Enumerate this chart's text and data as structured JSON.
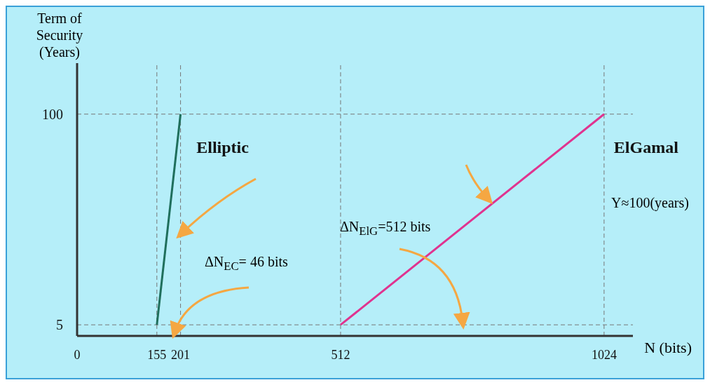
{
  "chart_data": {
    "type": "line",
    "xlabel": "N (bits)",
    "ylabel": "Term of Security (Years)",
    "xlim": [
      0,
      1080
    ],
    "xticks": [
      0,
      155,
      201,
      512,
      1024
    ],
    "ylim": [
      0,
      123
    ],
    "yticks": [
      5,
      100
    ],
    "series": [
      {
        "name": "Elliptic",
        "color": "#1f6f5c",
        "x": [
          155,
          201
        ],
        "values": [
          5,
          100
        ]
      },
      {
        "name": "ElGamal",
        "color": "#e0338f",
        "x": [
          512,
          1024
        ],
        "values": [
          5,
          100
        ]
      }
    ],
    "ref_lines": [
      {
        "axis": "x",
        "value": 155,
        "line_style": "dashed",
        "color": "#777777"
      },
      {
        "axis": "x",
        "value": 201,
        "line_style": "dashed",
        "color": "#777777"
      },
      {
        "axis": "x",
        "value": 512,
        "line_style": "dashed",
        "color": "#777777"
      },
      {
        "axis": "x",
        "value": 1024,
        "line_style": "dashed",
        "color": "#777777"
      },
      {
        "axis": "y",
        "value": 5,
        "line_style": "dashed",
        "color": "#777777"
      },
      {
        "axis": "y",
        "value": 100,
        "line_style": "dashed",
        "color": "#777777"
      }
    ],
    "annotations": [
      "ΔN$_{EC}$= 46 bits",
      "ΔN$_{ElG}$=512 bits",
      "Y≈100(years)"
    ],
    "marker": "none",
    "line_style": "solid"
  }
}
